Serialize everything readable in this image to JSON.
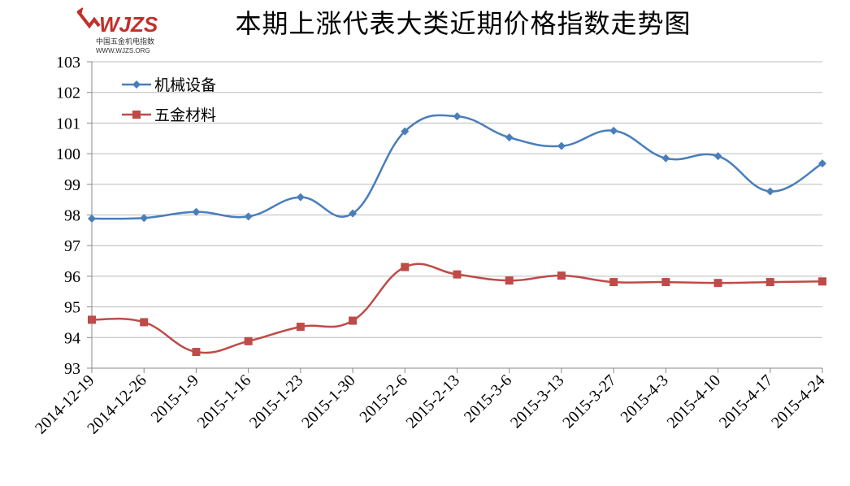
{
  "header": {
    "title": "本期上涨代表大类近期价格指数走势图",
    "logo_text": "WJZS",
    "logo_subtitle": "中国五金机电指数",
    "logo_url_text": "WWW.WJZS.ORG"
  },
  "colors": {
    "series_1": "#4a7ebb",
    "series_2": "#be4b48",
    "grid": "#bcbcbc",
    "logo": "#c0312b"
  },
  "chart_data": {
    "type": "line",
    "title": "本期上涨代表大类近期价格指数走势图",
    "xlabel": "",
    "ylabel": "",
    "categories": [
      "2014-12-19",
      "2014-12-26",
      "2015-1-9",
      "2015-1-16",
      "2015-1-23",
      "2015-1-30",
      "2015-2-6",
      "2015-2-13",
      "2015-3-6",
      "2015-3-13",
      "2015-3-27",
      "2015-4-3",
      "2015-4-10",
      "2015-4-17",
      "2015-4-24"
    ],
    "ylim": [
      93,
      103
    ],
    "yticks": [
      93,
      94,
      95,
      96,
      97,
      98,
      99,
      100,
      101,
      102,
      103
    ],
    "grid": true,
    "legend_position": "top-left",
    "smooth": true,
    "series": [
      {
        "name": "机械设备",
        "marker": "diamond",
        "values": [
          97.88,
          97.9,
          98.1,
          97.95,
          98.58,
          98.05,
          100.73,
          101.22,
          100.53,
          100.25,
          100.75,
          99.85,
          99.92,
          98.77,
          99.68
        ]
      },
      {
        "name": "五金材料",
        "marker": "square",
        "values": [
          94.58,
          94.5,
          93.53,
          93.88,
          94.35,
          94.55,
          96.3,
          96.06,
          95.86,
          96.02,
          95.81,
          95.81,
          95.78,
          95.81,
          95.83
        ]
      }
    ]
  }
}
